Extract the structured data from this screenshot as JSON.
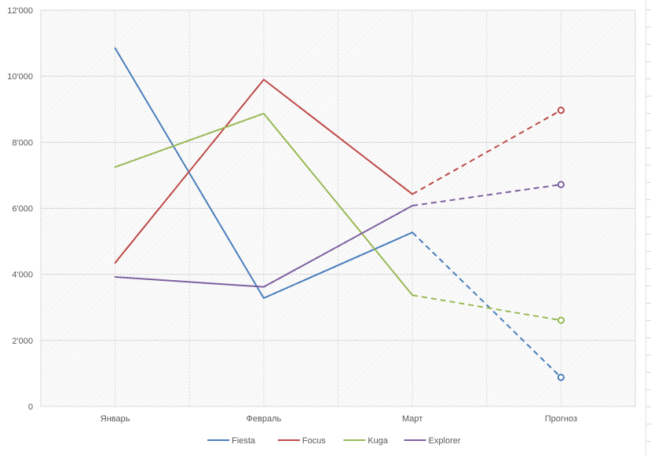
{
  "chart_data": {
    "type": "line",
    "title": "",
    "xlabel": "",
    "ylabel": "",
    "categories": [
      "Январь",
      "Февраль",
      "Март",
      "Прогноз"
    ],
    "ylim": [
      0,
      12000
    ],
    "yticks": [
      0,
      2000,
      4000,
      6000,
      8000,
      10000,
      12000
    ],
    "ytick_labels": [
      "0",
      "2'000",
      "4'000",
      "6'000",
      "8'000",
      "10'000",
      "12'000"
    ],
    "grid": true,
    "legend_position": "bottom",
    "forecast_category": "Прогноз",
    "series": [
      {
        "name": "Fiesta",
        "color": "#4a7ebb",
        "values": [
          10850,
          3280,
          5270,
          880
        ]
      },
      {
        "name": "Focus",
        "color": "#be4b48",
        "values": [
          4350,
          9900,
          6430,
          8970
        ]
      },
      {
        "name": "Kuga",
        "color": "#98b954",
        "values": [
          7250,
          8870,
          3370,
          2610
        ]
      },
      {
        "name": "Explorer",
        "color": "#7d60a0",
        "values": [
          3920,
          3620,
          6080,
          6720
        ]
      }
    ]
  }
}
